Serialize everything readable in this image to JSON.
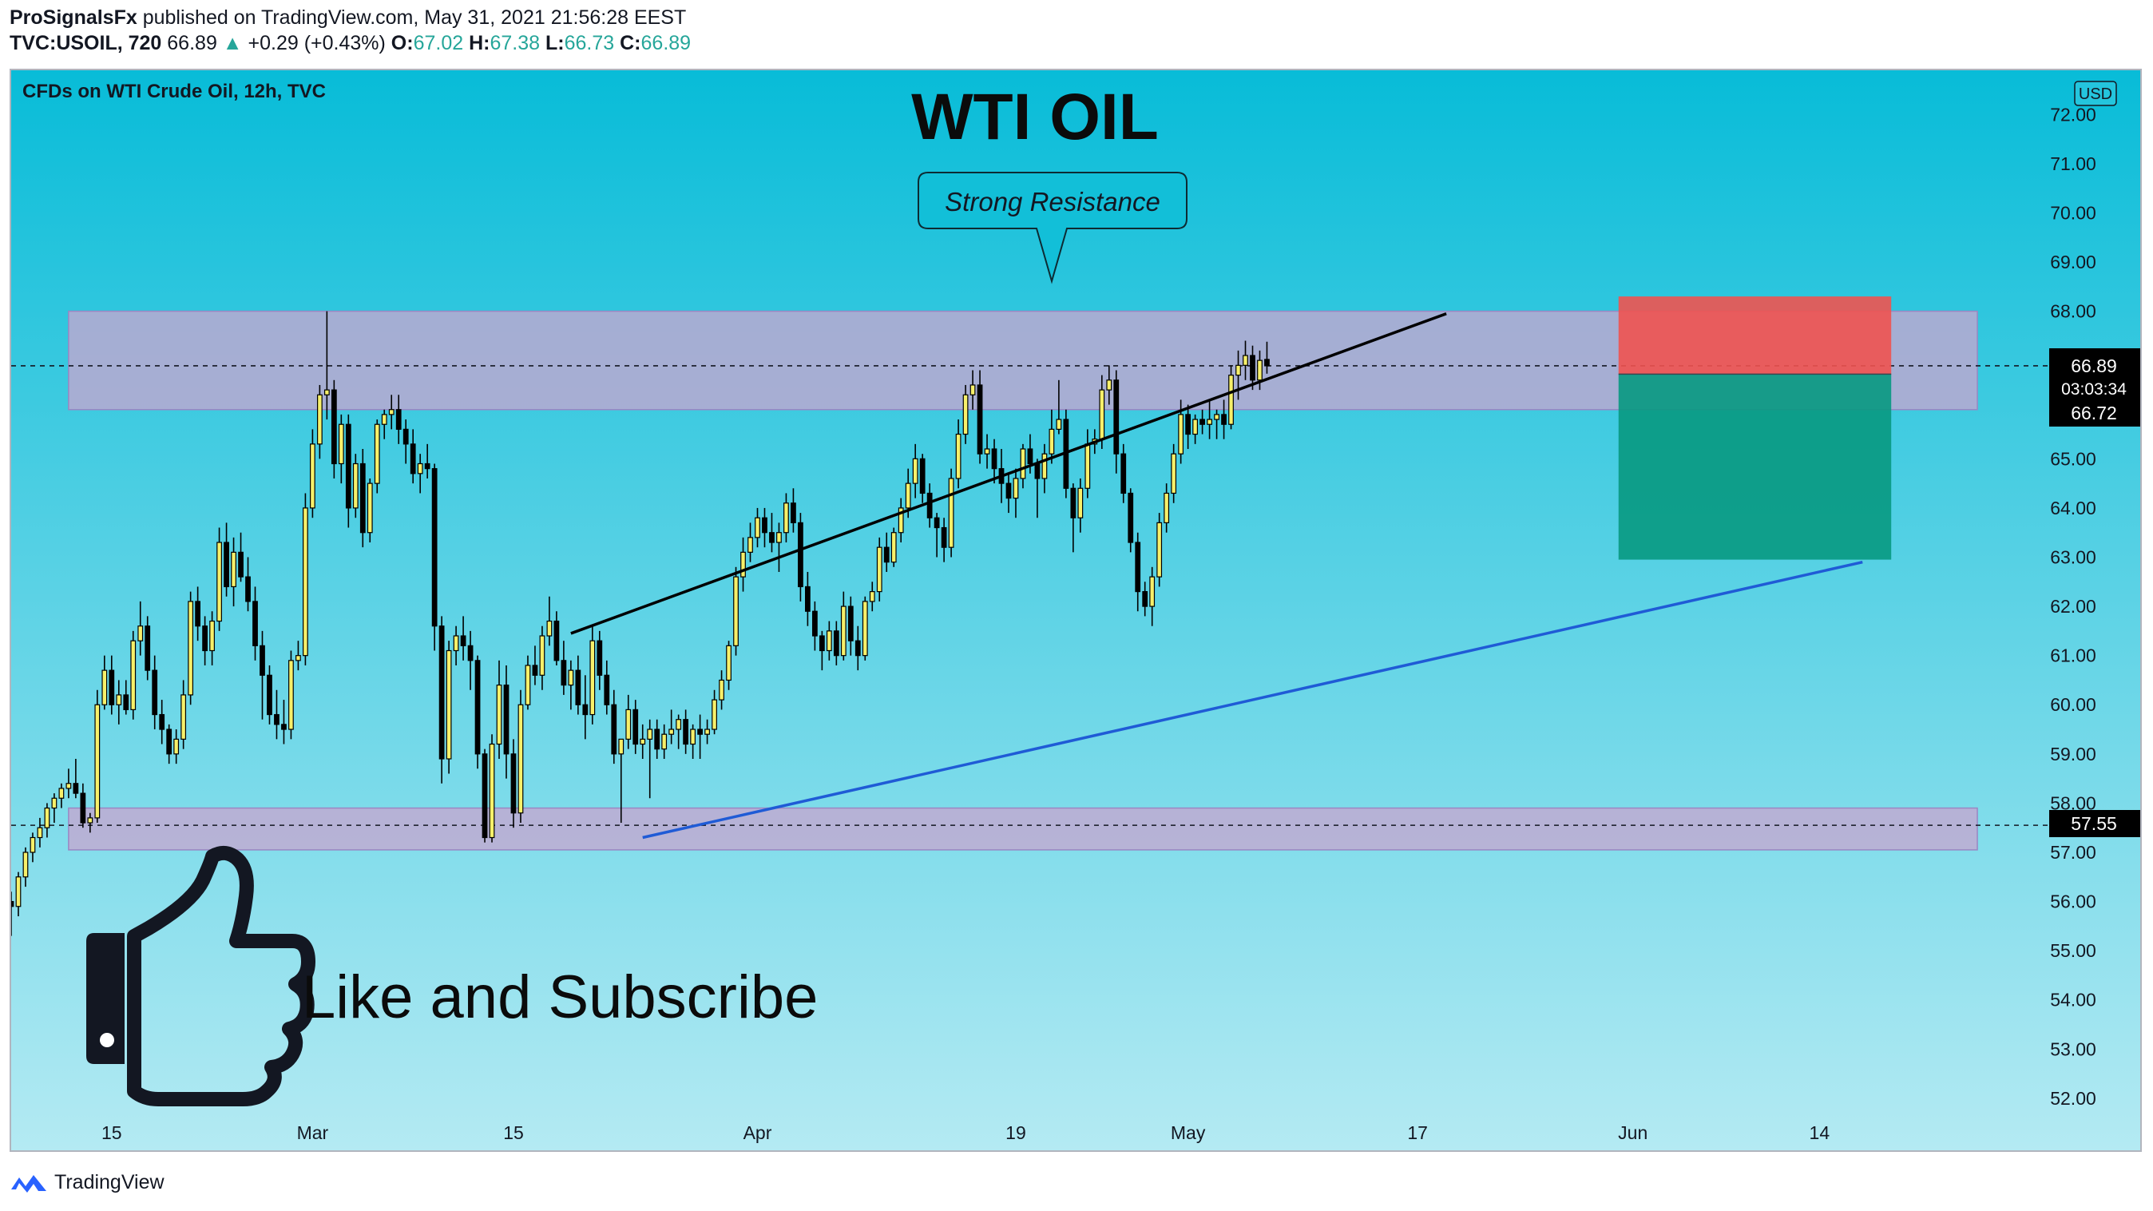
{
  "header": {
    "author": "ProSignalsFx",
    "published": "published on TradingView.com, May 31, 2021 21:56:28 EEST",
    "symbol": "TVC:USOIL, 720",
    "last": "66.89",
    "change_arrow": "▲",
    "change": "+0.29 (+0.43%)",
    "open_label": "O:",
    "open": "67.02",
    "high_label": "H:",
    "high": "67.38",
    "low_label": "L:",
    "low": "66.73",
    "close_label": "C:",
    "close": "66.89"
  },
  "chart_meta": {
    "instrument": "CFDs on WTI Crude Oil, 12h, TVC",
    "title": "WTI OIL",
    "currency_button": "USD",
    "resistance_callout": "Strong Resistance",
    "cta_text": "Like and Subscribe",
    "price_label_current": "66.89",
    "countdown": "03:03:34",
    "price_label_entry": "66.72",
    "price_label_support": "57.55"
  },
  "colors": {
    "bg_top": "#08bcd8",
    "bg_bottom": "#b4eaf3",
    "zone": "#c5a6cf",
    "candle_body": "#f7f06a",
    "candle_dark": "#000000",
    "stop_box": "#ef5350",
    "target_box": "#089981",
    "support_line": "#1f5bd6",
    "resistance_line": "#000000",
    "up_color": "#26a69a"
  },
  "footer": {
    "brand": "TradingView",
    "logo_icon": "tradingview-logo-icon"
  },
  "chart_data": {
    "type": "candlestick",
    "title": "WTI OIL",
    "y_axis": {
      "ticks": [
        "52.00",
        "53.00",
        "54.00",
        "55.00",
        "56.00",
        "57.00",
        "58.00",
        "59.00",
        "60.00",
        "61.00",
        "62.00",
        "63.00",
        "64.00",
        "65.00",
        "66.00",
        "67.00",
        "68.00",
        "69.00",
        "70.00",
        "71.00",
        "72.00"
      ],
      "range": [
        51.3,
        72.8
      ],
      "position": "right"
    },
    "x_axis": {
      "labels": [
        "15",
        "Mar",
        "15",
        "Apr",
        "19",
        "May",
        "17",
        "Jun",
        "14"
      ],
      "label_dates": [
        "2021-02-15",
        "2021-03-01",
        "2021-03-15",
        "2021-04-01",
        "2021-04-19",
        "2021-05-01",
        "2021-05-17",
        "2021-06-01",
        "2021-06-14"
      ],
      "range": [
        "2021-02-08",
        "2021-06-26"
      ]
    },
    "candles_start": "2021-02-08",
    "candle_interval": "12h",
    "candles": [
      [
        56.0,
        56.2,
        55.3,
        55.9
      ],
      [
        55.9,
        56.6,
        55.7,
        56.5
      ],
      [
        56.5,
        57.1,
        56.3,
        57.0
      ],
      [
        57.0,
        57.4,
        56.8,
        57.3
      ],
      [
        57.3,
        57.7,
        57.1,
        57.5
      ],
      [
        57.5,
        58.0,
        57.3,
        57.9
      ],
      [
        57.9,
        58.2,
        57.6,
        58.1
      ],
      [
        58.1,
        58.4,
        57.9,
        58.3
      ],
      [
        58.3,
        58.7,
        58.1,
        58.4
      ],
      [
        58.4,
        58.9,
        58.1,
        58.2
      ],
      [
        58.2,
        58.4,
        57.5,
        57.6
      ],
      [
        57.6,
        57.8,
        57.4,
        57.7
      ],
      [
        57.7,
        60.3,
        57.6,
        60.0
      ],
      [
        60.0,
        61.0,
        59.9,
        60.7
      ],
      [
        60.7,
        61.0,
        59.8,
        60.0
      ],
      [
        60.0,
        60.5,
        59.6,
        60.2
      ],
      [
        60.2,
        60.5,
        59.8,
        59.9
      ],
      [
        59.9,
        61.5,
        59.7,
        61.3
      ],
      [
        61.3,
        62.1,
        61.0,
        61.6
      ],
      [
        61.6,
        61.8,
        60.5,
        60.7
      ],
      [
        60.7,
        61.0,
        59.5,
        59.8
      ],
      [
        59.8,
        60.1,
        59.2,
        59.5
      ],
      [
        59.5,
        59.6,
        58.8,
        59.0
      ],
      [
        59.0,
        59.5,
        58.8,
        59.3
      ],
      [
        59.3,
        60.5,
        59.1,
        60.2
      ],
      [
        60.2,
        62.3,
        60.0,
        62.1
      ],
      [
        62.1,
        62.4,
        61.3,
        61.6
      ],
      [
        61.6,
        61.8,
        60.8,
        61.1
      ],
      [
        61.1,
        61.9,
        60.8,
        61.7
      ],
      [
        61.7,
        63.6,
        61.5,
        63.3
      ],
      [
        63.3,
        63.7,
        62.2,
        62.4
      ],
      [
        62.4,
        63.4,
        62.0,
        63.1
      ],
      [
        63.1,
        63.5,
        62.5,
        62.6
      ],
      [
        62.6,
        63.0,
        61.9,
        62.1
      ],
      [
        62.1,
        62.4,
        60.9,
        61.2
      ],
      [
        61.2,
        61.5,
        59.7,
        60.6
      ],
      [
        60.6,
        60.8,
        59.6,
        59.8
      ],
      [
        59.8,
        60.3,
        59.3,
        59.6
      ],
      [
        59.6,
        60.1,
        59.2,
        59.5
      ],
      [
        59.5,
        61.1,
        59.3,
        60.9
      ],
      [
        60.9,
        61.3,
        60.7,
        61.0
      ],
      [
        61.0,
        64.3,
        60.8,
        64.0
      ],
      [
        64.0,
        65.6,
        63.8,
        65.3
      ],
      [
        65.3,
        66.5,
        65.0,
        66.3
      ],
      [
        66.3,
        68.0,
        65.8,
        66.4
      ],
      [
        66.4,
        66.6,
        64.6,
        64.9
      ],
      [
        64.9,
        65.9,
        64.5,
        65.7
      ],
      [
        65.7,
        65.9,
        63.6,
        64.0
      ],
      [
        64.0,
        65.1,
        63.8,
        64.9
      ],
      [
        64.9,
        65.2,
        63.2,
        63.5
      ],
      [
        63.5,
        64.6,
        63.3,
        64.5
      ],
      [
        64.5,
        65.8,
        64.3,
        65.7
      ],
      [
        65.7,
        66.0,
        65.4,
        65.9
      ],
      [
        65.9,
        66.3,
        65.6,
        66.0
      ],
      [
        66.0,
        66.3,
        65.3,
        65.6
      ],
      [
        65.6,
        65.8,
        64.9,
        65.3
      ],
      [
        65.3,
        65.6,
        64.5,
        64.7
      ],
      [
        64.7,
        65.1,
        64.3,
        64.9
      ],
      [
        64.9,
        65.3,
        64.6,
        64.8
      ],
      [
        64.8,
        64.9,
        61.1,
        61.6
      ],
      [
        61.6,
        61.8,
        58.4,
        58.9
      ],
      [
        58.9,
        61.3,
        58.6,
        61.1
      ],
      [
        61.1,
        61.6,
        60.8,
        61.4
      ],
      [
        61.4,
        61.8,
        60.9,
        61.2
      ],
      [
        61.2,
        61.5,
        60.3,
        60.9
      ],
      [
        60.9,
        61.0,
        58.7,
        59.0
      ],
      [
        59.0,
        59.1,
        57.2,
        57.3
      ],
      [
        57.3,
        59.4,
        57.2,
        59.2
      ],
      [
        59.2,
        60.9,
        58.9,
        60.4
      ],
      [
        60.4,
        60.8,
        58.5,
        59.0
      ],
      [
        59.0,
        59.3,
        57.5,
        57.8
      ],
      [
        57.8,
        60.3,
        57.6,
        60.0
      ],
      [
        60.0,
        61.0,
        59.9,
        60.8
      ],
      [
        60.8,
        61.2,
        60.4,
        60.6
      ],
      [
        60.6,
        61.6,
        60.3,
        61.4
      ],
      [
        61.4,
        62.2,
        61.2,
        61.7
      ],
      [
        61.7,
        61.9,
        60.8,
        60.9
      ],
      [
        60.9,
        61.3,
        60.2,
        60.4
      ],
      [
        60.4,
        60.9,
        59.9,
        60.7
      ],
      [
        60.7,
        61.0,
        59.8,
        60.0
      ],
      [
        60.0,
        60.6,
        59.3,
        59.8
      ],
      [
        59.8,
        61.6,
        59.6,
        61.3
      ],
      [
        61.3,
        61.5,
        60.3,
        60.6
      ],
      [
        60.6,
        60.9,
        59.8,
        60.0
      ],
      [
        60.0,
        60.3,
        58.8,
        59.0
      ],
      [
        59.0,
        59.3,
        57.6,
        59.3
      ],
      [
        59.3,
        60.2,
        59.1,
        59.9
      ],
      [
        59.9,
        60.1,
        59.0,
        59.2
      ],
      [
        59.2,
        59.6,
        58.9,
        59.3
      ],
      [
        59.3,
        59.7,
        58.1,
        59.5
      ],
      [
        59.5,
        59.7,
        58.9,
        59.1
      ],
      [
        59.1,
        59.6,
        58.9,
        59.4
      ],
      [
        59.4,
        59.9,
        59.2,
        59.5
      ],
      [
        59.5,
        59.8,
        59.1,
        59.7
      ],
      [
        59.7,
        59.9,
        59.0,
        59.2
      ],
      [
        59.2,
        59.6,
        58.9,
        59.5
      ],
      [
        59.5,
        59.8,
        58.9,
        59.4
      ],
      [
        59.4,
        59.7,
        59.2,
        59.5
      ],
      [
        59.5,
        60.3,
        59.4,
        60.1
      ],
      [
        60.1,
        60.7,
        59.9,
        60.5
      ],
      [
        60.5,
        61.3,
        60.3,
        61.2
      ],
      [
        61.2,
        62.8,
        61.0,
        62.6
      ],
      [
        62.6,
        63.4,
        62.3,
        63.1
      ],
      [
        63.1,
        63.7,
        62.9,
        63.4
      ],
      [
        63.4,
        64.0,
        63.2,
        63.8
      ],
      [
        63.8,
        64.0,
        63.2,
        63.5
      ],
      [
        63.5,
        63.9,
        63.1,
        63.3
      ],
      [
        63.3,
        63.7,
        62.7,
        63.5
      ],
      [
        63.5,
        64.3,
        63.3,
        64.1
      ],
      [
        64.1,
        64.4,
        63.5,
        63.7
      ],
      [
        63.7,
        63.9,
        62.1,
        62.4
      ],
      [
        62.4,
        62.7,
        61.6,
        61.9
      ],
      [
        61.9,
        62.1,
        61.1,
        61.4
      ],
      [
        61.4,
        61.5,
        60.7,
        61.1
      ],
      [
        61.1,
        61.7,
        60.9,
        61.5
      ],
      [
        61.5,
        61.7,
        60.8,
        61.0
      ],
      [
        61.0,
        62.3,
        60.9,
        62.0
      ],
      [
        62.0,
        62.2,
        61.0,
        61.3
      ],
      [
        61.3,
        61.6,
        60.7,
        61.0
      ],
      [
        61.0,
        62.2,
        60.9,
        62.1
      ],
      [
        62.1,
        62.5,
        61.9,
        62.3
      ],
      [
        62.3,
        63.4,
        62.1,
        63.2
      ],
      [
        63.2,
        63.5,
        62.7,
        62.9
      ],
      [
        62.9,
        63.6,
        62.8,
        63.5
      ],
      [
        63.5,
        64.2,
        63.3,
        64.0
      ],
      [
        64.0,
        64.8,
        63.8,
        64.5
      ],
      [
        64.5,
        65.3,
        64.2,
        65.0
      ],
      [
        65.0,
        65.1,
        64.1,
        64.3
      ],
      [
        64.3,
        64.5,
        63.6,
        63.8
      ],
      [
        63.8,
        63.9,
        63.0,
        63.6
      ],
      [
        63.6,
        63.8,
        62.9,
        63.2
      ],
      [
        63.2,
        64.8,
        63.0,
        64.6
      ],
      [
        64.6,
        65.8,
        64.4,
        65.5
      ],
      [
        65.5,
        66.5,
        65.3,
        66.3
      ],
      [
        66.3,
        66.8,
        66.0,
        66.5
      ],
      [
        66.5,
        66.8,
        64.9,
        65.1
      ],
      [
        65.1,
        65.5,
        64.8,
        65.2
      ],
      [
        65.2,
        65.4,
        64.5,
        64.8
      ],
      [
        64.8,
        65.2,
        64.1,
        64.5
      ],
      [
        64.5,
        64.7,
        63.9,
        64.2
      ],
      [
        64.2,
        64.8,
        63.8,
        64.6
      ],
      [
        64.6,
        65.3,
        64.4,
        65.2
      ],
      [
        65.2,
        65.5,
        64.7,
        64.9
      ],
      [
        64.9,
        65.0,
        63.8,
        64.6
      ],
      [
        64.6,
        65.3,
        64.3,
        65.1
      ],
      [
        65.1,
        66.0,
        64.9,
        65.6
      ],
      [
        65.6,
        66.6,
        65.5,
        65.8
      ],
      [
        65.8,
        66.0,
        64.2,
        64.4
      ],
      [
        64.4,
        64.5,
        63.1,
        63.8
      ],
      [
        63.8,
        64.6,
        63.5,
        64.4
      ],
      [
        64.4,
        65.6,
        64.2,
        65.3
      ],
      [
        65.3,
        65.6,
        65.1,
        65.4
      ],
      [
        65.4,
        66.7,
        65.2,
        66.4
      ],
      [
        66.4,
        66.9,
        66.1,
        66.6
      ],
      [
        66.6,
        66.8,
        64.7,
        65.1
      ],
      [
        65.1,
        65.3,
        64.1,
        64.3
      ],
      [
        64.3,
        64.4,
        63.1,
        63.3
      ],
      [
        63.3,
        63.5,
        61.9,
        62.3
      ],
      [
        62.3,
        62.5,
        61.8,
        62.0
      ],
      [
        62.0,
        62.8,
        61.6,
        62.6
      ],
      [
        62.6,
        63.9,
        62.4,
        63.7
      ],
      [
        63.7,
        64.5,
        63.5,
        64.3
      ],
      [
        64.3,
        65.3,
        64.1,
        65.1
      ],
      [
        65.1,
        66.2,
        64.9,
        65.9
      ],
      [
        65.9,
        66.1,
        65.2,
        65.5
      ],
      [
        65.5,
        65.9,
        65.3,
        65.8
      ],
      [
        65.8,
        66.0,
        65.5,
        65.7
      ],
      [
        65.7,
        66.2,
        65.4,
        65.8
      ],
      [
        65.8,
        66.0,
        65.4,
        65.9
      ],
      [
        65.9,
        66.2,
        65.4,
        65.7
      ],
      [
        65.7,
        66.9,
        65.6,
        66.7
      ],
      [
        66.7,
        67.2,
        66.2,
        66.9
      ],
      [
        66.9,
        67.4,
        66.6,
        67.1
      ],
      [
        67.1,
        67.3,
        66.4,
        66.6
      ],
      [
        66.6,
        67.2,
        66.4,
        67.0
      ],
      [
        67.02,
        67.38,
        66.73,
        66.89
      ]
    ],
    "zones": [
      {
        "label": "Strong Resistance",
        "low": 66.0,
        "high": 68.0,
        "start": "2021-02-12",
        "end": "2021-06-25"
      },
      {
        "label": "",
        "low": 57.05,
        "high": 57.9,
        "start": "2021-02-12",
        "end": "2021-06-25"
      }
    ],
    "trendlines": [
      {
        "name": "resistance",
        "x1": "2021-03-19",
        "y1": 61.45,
        "x2": "2021-05-19",
        "y2": 67.95
      },
      {
        "name": "support",
        "x1": "2021-03-24",
        "y1": 57.3,
        "x2": "2021-06-17",
        "y2": 62.9
      }
    ],
    "horizontal_lines": [
      66.89,
      57.55
    ],
    "position": {
      "side": "short",
      "entry": 66.72,
      "stop": 68.3,
      "target": 62.95,
      "start": "2021-05-31",
      "end": "2021-06-19"
    },
    "grid": false,
    "legend": false
  }
}
